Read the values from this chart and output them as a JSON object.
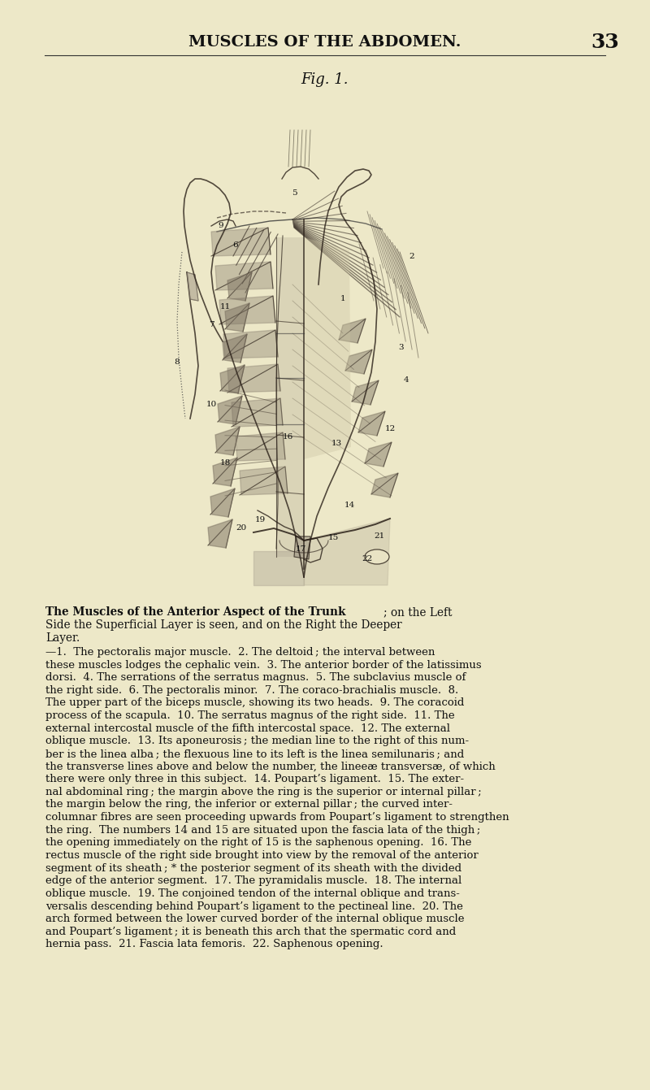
{
  "page_background": "#ede8c8",
  "header_title": "MUSCLES OF THE ABDOMEN.",
  "header_page_num": "33",
  "fig_label": "Fig. 1.",
  "caption_title_part1": "The Muscles of the Anterior Aspect of the Trunk",
  "caption_title_part2": "; on the Left\nSide the Superficial Layer is seen, and on the Right the Deeper\nLayer.",
  "caption_body": "—1. The pectoralis major muscle. 2. The deltoid ; the interval between\nthese muscles lodges the cephalic vein. 3. The anterior border of the latissimus\ndorsi. 4. The serrations of the serratus magnus. 5. The subclavius muscle of\nthe right side. 6. The pectoralis minor. 7. The coraco-brachialis muscle. 8.\nThe upper part of the biceps muscle, showing its two heads. 9. The coracoid\nprocess of the scapula. 10. The serratus magnus of the right side. 11. The\nexternal intercostal muscle of the fifth intercostal space. 12. The external\noblique muscle. 13. Its aponeurosis ; the median line to the right of this num-\nber is the linea alba ; the flexuous line to its left is the linea semilunaris ; and\nthe transverse lines above and below the number, the lineeæ transversæ, of which\nthere were only three in this subject. 14. Poupart’s ligament. 15. The exter-\nnal abdominal ring ; the margin above the ring is the superior or internal pillar ;\nthe margin below the ring, the inferior or external pillar ; the curved inter-\ncolumnar fibres are seen proceeding upwards​from Poupart’s ligament to strengthen\nthe ring. The numbers 14 and 15 are situated upon the fascia lata of the thigh ;\nthe opening immediately on the right of 15 is the saphenous opening. 16. The\nrectus muscle of the right side brought into view by the removal of the anterior\nsegment of its sheath ; * the posterior segment of its sheath with the divided\nedge of the anterior segment. 17. The pyramidalis muscle. 18. The internal\noblique muscle. 19. The conjoined tendon of the internal oblique and trans-\nversalis descending behind Poupart’s ligament to the pectineal line. 20. The\narch formed between the lower curved border of the internal oblique muscle\nand Poupart’s ligament ; it is beneath this arch that the spermatic cord and\nhernia pass. 21. Fascia lata femoris. 22. Saphenous opening.",
  "img_bg": "#cdc8a8",
  "body_color": "#b8b090",
  "muscle_dark": "#4a4035",
  "muscle_mid": "#6a6050",
  "muscle_light": "#8a8070"
}
